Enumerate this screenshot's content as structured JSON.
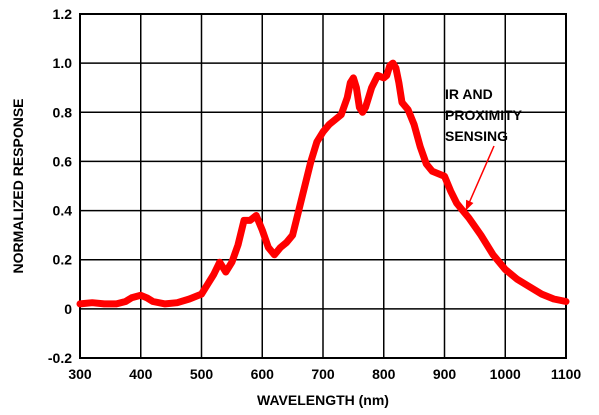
{
  "chart_data": {
    "type": "line",
    "title": "",
    "xlabel": "WAVELENGTH (nm)",
    "ylabel": "NORMALIZED RESPONSE",
    "xlim": [
      300,
      1100
    ],
    "ylim": [
      -0.2,
      1.2
    ],
    "grid": true,
    "x_ticks": [
      300,
      400,
      500,
      600,
      700,
      800,
      900,
      1000,
      1100
    ],
    "x_tick_labels": [
      "300",
      "400",
      "500",
      "600",
      "700",
      "800",
      "900",
      "1000",
      "1100"
    ],
    "y_ticks": [
      -0.2,
      0,
      0.2,
      0.4,
      0.6,
      0.8,
      1.0,
      1.2
    ],
    "y_tick_labels": [
      "-0.2",
      "0",
      "0.2",
      "0.4",
      "0.6",
      "0.8",
      "1.0",
      "1.2"
    ],
    "series_color": "#ff0000",
    "annotation": {
      "lines": [
        "IR AND",
        "PROXIMITY",
        "SENSING"
      ],
      "target": {
        "x": 935,
        "y": 0.4
      }
    },
    "series": [
      {
        "x": [
          300,
          320,
          340,
          360,
          375,
          385,
          400,
          410,
          420,
          440,
          460,
          480,
          500,
          510,
          520,
          530,
          540,
          550,
          560,
          570,
          580,
          590,
          600,
          610,
          620,
          630,
          640,
          650,
          660,
          670,
          680,
          690,
          700,
          710,
          720,
          730,
          740,
          745,
          750,
          755,
          760,
          765,
          770,
          775,
          780,
          790,
          800,
          805,
          810,
          815,
          820,
          825,
          830,
          840,
          850,
          860,
          870,
          880,
          890,
          900,
          910,
          920,
          930,
          940,
          960,
          980,
          1000,
          1020,
          1040,
          1060,
          1080,
          1100
        ],
        "y": [
          0.02,
          0.025,
          0.02,
          0.02,
          0.03,
          0.045,
          0.055,
          0.045,
          0.03,
          0.02,
          0.025,
          0.04,
          0.06,
          0.1,
          0.14,
          0.19,
          0.15,
          0.19,
          0.26,
          0.36,
          0.36,
          0.38,
          0.32,
          0.25,
          0.22,
          0.25,
          0.27,
          0.3,
          0.4,
          0.5,
          0.6,
          0.68,
          0.72,
          0.75,
          0.77,
          0.79,
          0.86,
          0.92,
          0.94,
          0.9,
          0.82,
          0.8,
          0.82,
          0.86,
          0.9,
          0.95,
          0.94,
          0.95,
          0.99,
          1.0,
          0.98,
          0.92,
          0.84,
          0.81,
          0.75,
          0.66,
          0.59,
          0.56,
          0.55,
          0.54,
          0.48,
          0.43,
          0.4,
          0.37,
          0.3,
          0.22,
          0.16,
          0.12,
          0.09,
          0.06,
          0.04,
          0.03
        ]
      }
    ]
  }
}
